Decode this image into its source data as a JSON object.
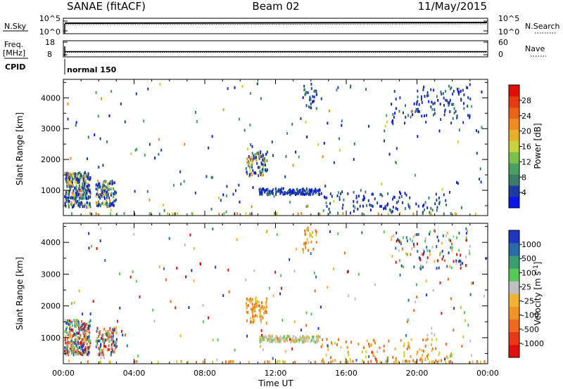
{
  "header": {
    "station": "SANAE (fitACF)",
    "beam": "Beam 02",
    "date": "11/May/2015"
  },
  "ancillary": {
    "nsky": {
      "label": "N.Sky",
      "ticks": [
        "10^5",
        "10^0"
      ]
    },
    "nsearch": {
      "label": "N.Search",
      "ticks": [
        "10^5",
        "10^0"
      ]
    },
    "freq": {
      "label": "Freq.",
      "unit": "[MHz]",
      "ticks": [
        "18",
        "8"
      ],
      "value": 10.5
    },
    "nave": {
      "label": "Nave",
      "ticks": [
        "60",
        "0"
      ],
      "value": 12
    },
    "cpid": {
      "label": "CPID",
      "value": "normal 150"
    }
  },
  "power_colorbar": {
    "label": "Power [dB]",
    "ticks": [
      "28",
      "24",
      "20",
      "16",
      "12",
      "8",
      "4"
    ],
    "colors": [
      "#0a16e8",
      "#1c3aa0",
      "#3c7a6a",
      "#4aa060",
      "#7ac04a",
      "#c8d23c",
      "#e8b028",
      "#ee8c22",
      "#ea6418",
      "#e43c10",
      "#e01008"
    ]
  },
  "velocity_colorbar": {
    "label": "Velocity [m s",
    "label_exponent": "-1",
    "label_close": "]",
    "ticks": [
      "1000",
      "500",
      "100",
      "25",
      "-25",
      "-100",
      "-500",
      "-1000"
    ],
    "colors": [
      "#e01010",
      "#e83a18",
      "#ee6a20",
      "#f09428",
      "#f0b432",
      "#c0c0c0",
      "#58c858",
      "#3a9e70",
      "#2c6aa8",
      "#2038c0"
    ]
  },
  "chart_data": [
    {
      "type": "heatmap",
      "name": "power",
      "xlabel": "",
      "ylabel": "Slant Range [km]",
      "xlim": [
        0,
        24
      ],
      "ylim": [
        180,
        4600
      ],
      "yticks": [
        1000,
        2000,
        3000,
        4000
      ],
      "regions": [
        {
          "x": [
            0,
            1.5
          ],
          "y": [
            500,
            1600
          ],
          "n": 320,
          "mix": "power_mixed"
        },
        {
          "x": [
            1.8,
            3.0
          ],
          "y": [
            500,
            1350
          ],
          "n": 120,
          "mix": "power_mixed"
        },
        {
          "x": [
            0,
            24
          ],
          "y": [
            180,
            300
          ],
          "n": 260,
          "mix": "power_near"
        },
        {
          "x": [
            10.3,
            11.5
          ],
          "y": [
            1500,
            2300
          ],
          "n": 90,
          "mix": "power_mixed"
        },
        {
          "x": [
            11.0,
            14.5
          ],
          "y": [
            900,
            1100
          ],
          "n": 150,
          "mix": "power_blue"
        },
        {
          "x": [
            14.5,
            22.0
          ],
          "y": [
            250,
            1000
          ],
          "n": 110,
          "mix": "power_blue"
        },
        {
          "x": [
            18.5,
            23.0
          ],
          "y": [
            3200,
            4400
          ],
          "n": 110,
          "mix": "power_blue"
        },
        {
          "x": [
            13.5,
            14.3
          ],
          "y": [
            3700,
            4500
          ],
          "n": 30,
          "mix": "power_blue"
        },
        {
          "x": [
            0,
            24
          ],
          "y": [
            300,
            4500
          ],
          "n": 170,
          "mix": "power_mixed"
        }
      ]
    },
    {
      "type": "heatmap",
      "name": "velocity",
      "xlabel": "Time UT",
      "ylabel": "Slant Range [km]",
      "xlim": [
        0,
        24
      ],
      "ylim": [
        180,
        4600
      ],
      "xticks": [
        "00:00",
        "04:00",
        "08:00",
        "12:00",
        "16:00",
        "20:00",
        "00:00"
      ],
      "yticks": [
        1000,
        2000,
        3000,
        4000
      ],
      "regions": [
        {
          "x": [
            0,
            1.5
          ],
          "y": [
            500,
            1600
          ],
          "n": 320,
          "mix": "vel_mixed"
        },
        {
          "x": [
            1.8,
            3.0
          ],
          "y": [
            500,
            1350
          ],
          "n": 120,
          "mix": "vel_mixed"
        },
        {
          "x": [
            0,
            24
          ],
          "y": [
            180,
            300
          ],
          "n": 260,
          "mix": "vel_orange"
        },
        {
          "x": [
            10.3,
            11.5
          ],
          "y": [
            1500,
            2300
          ],
          "n": 90,
          "mix": "vel_orange"
        },
        {
          "x": [
            11.0,
            14.5
          ],
          "y": [
            900,
            1100
          ],
          "n": 150,
          "mix": "vel_gray"
        },
        {
          "x": [
            14.5,
            22.0
          ],
          "y": [
            250,
            1000
          ],
          "n": 110,
          "mix": "vel_orange"
        },
        {
          "x": [
            18.5,
            23.0
          ],
          "y": [
            3200,
            4400
          ],
          "n": 110,
          "mix": "vel_mixed"
        },
        {
          "x": [
            13.5,
            14.3
          ],
          "y": [
            3700,
            4500
          ],
          "n": 30,
          "mix": "vel_orange"
        },
        {
          "x": [
            0,
            24
          ],
          "y": [
            300,
            4500
          ],
          "n": 170,
          "mix": "vel_mixed"
        }
      ]
    }
  ],
  "mixes": {
    "power_mixed": [
      "#1c3aa0",
      "#1c3aa0",
      "#0a16e8",
      "#3c7a6a",
      "#4aa060",
      "#c8d23c",
      "#ee8c22"
    ],
    "power_blue": [
      "#1c3aa0",
      "#1c3aa0",
      "#0a16e8",
      "#3c7a6a"
    ],
    "power_near": [
      "#4aa060",
      "#c8d23c",
      "#1c3aa0",
      "#ee8c22",
      "#7ac04a"
    ],
    "vel_mixed": [
      "#2c6aa8",
      "#58c858",
      "#f0b432",
      "#ee6a20",
      "#c0c0c0",
      "#e01010",
      "#2038c0"
    ],
    "vel_orange": [
      "#f0b432",
      "#ee8c22",
      "#ee6a20",
      "#c8d23c"
    ],
    "vel_gray": [
      "#c0c0c0",
      "#c0c0c0",
      "#58c858",
      "#f0b432"
    ]
  }
}
